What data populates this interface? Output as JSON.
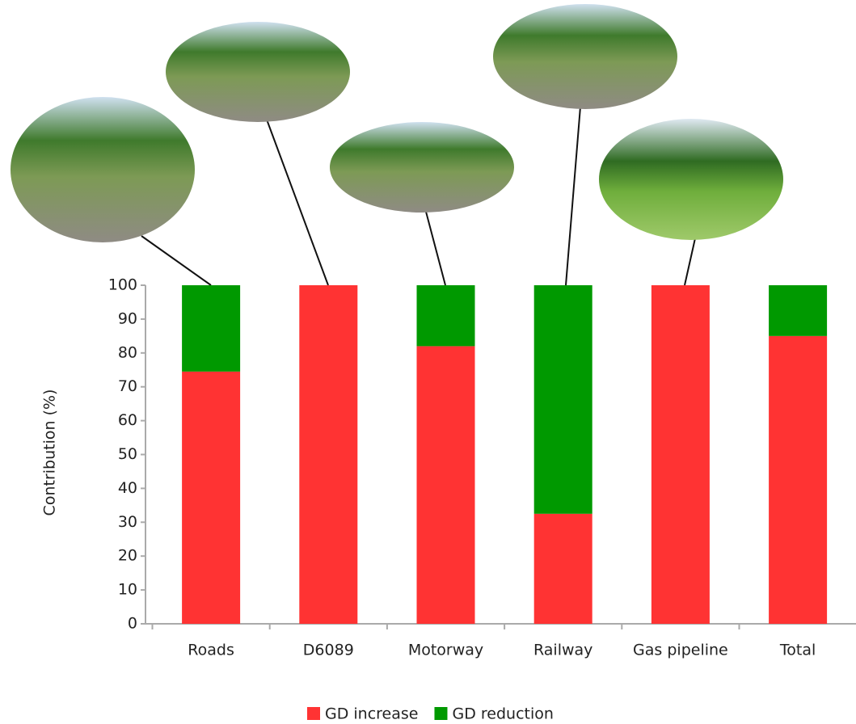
{
  "chart_data": {
    "type": "stacked_bar",
    "ylabel": "Contribution (%)",
    "categories": [
      "Roads",
      "D6089",
      "Motorway",
      "Railway",
      "Gas pipeline",
      "Total"
    ],
    "series": [
      {
        "name": "GD increase",
        "color": "#ff3333",
        "values": [
          74.5,
          100,
          82,
          32.5,
          100,
          85
        ]
      },
      {
        "name": "GD reduction",
        "color": "#009900",
        "values": [
          25.5,
          0,
          18,
          67.5,
          0,
          15
        ]
      }
    ],
    "ylim": [
      0,
      100
    ],
    "yticks": [
      0,
      10,
      20,
      30,
      40,
      50,
      60,
      70,
      80,
      90,
      100
    ],
    "legend": "bottom"
  }
}
